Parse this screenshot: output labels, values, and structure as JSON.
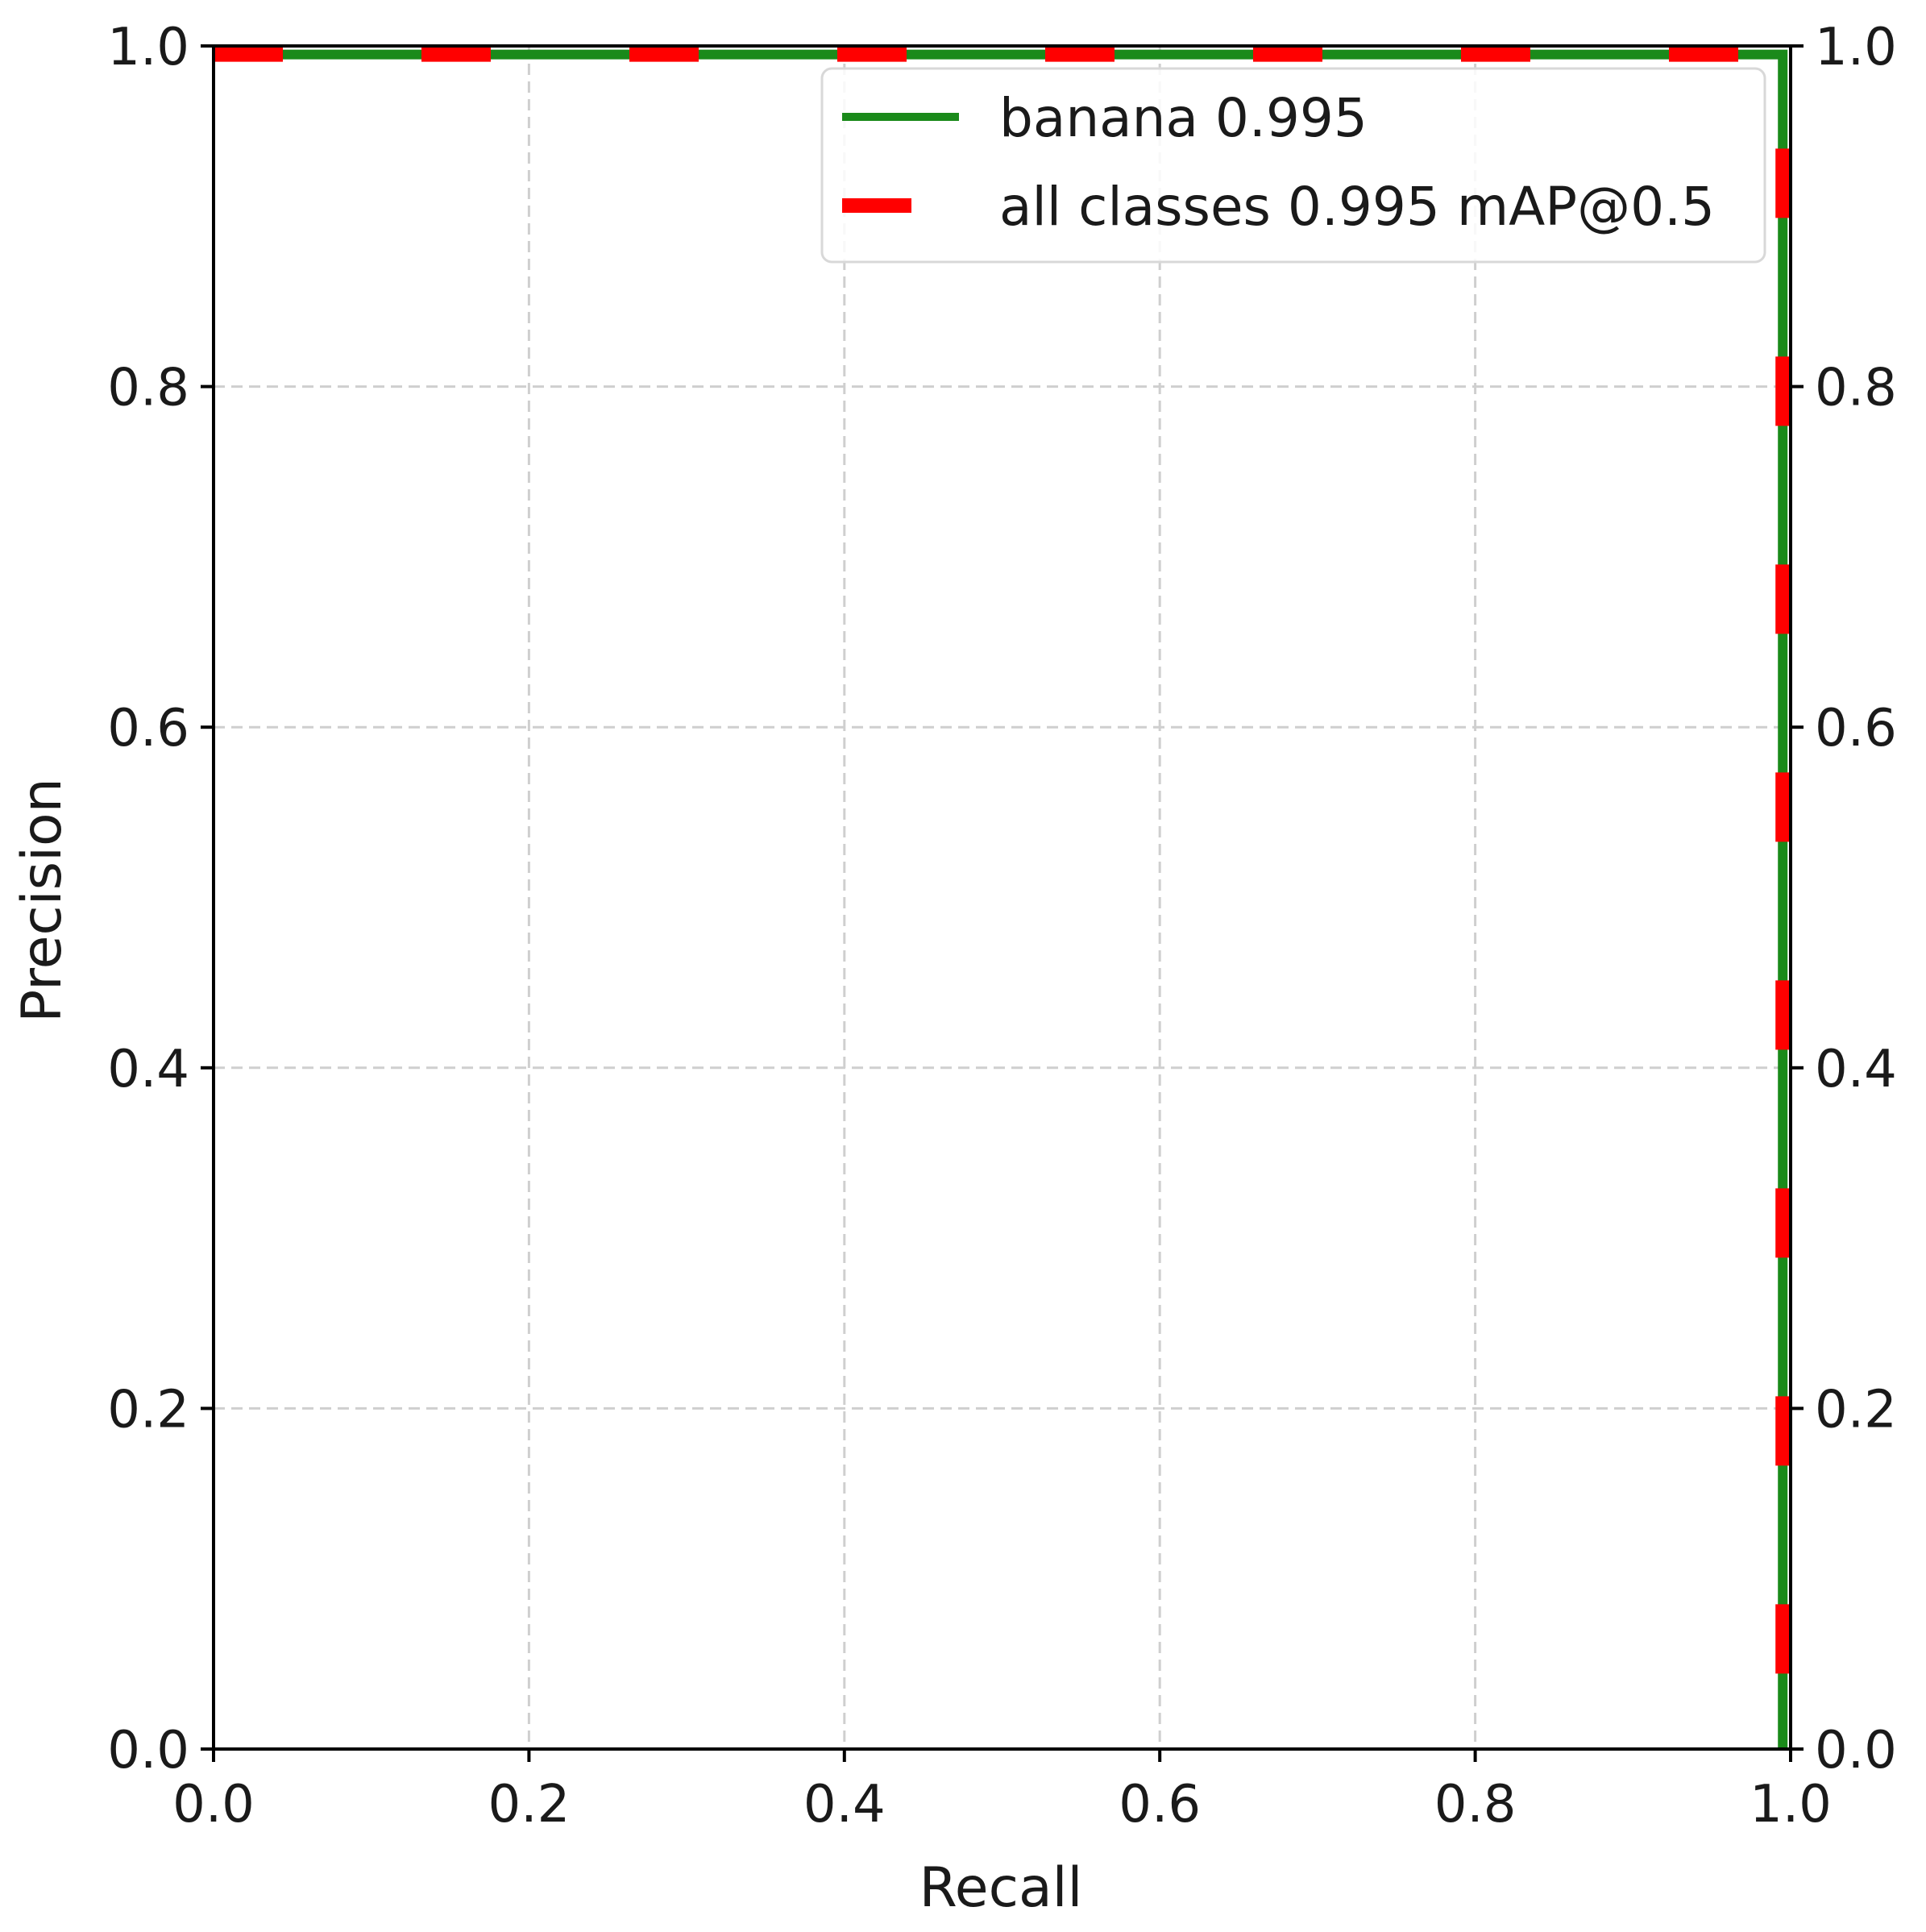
{
  "chart_data": {
    "type": "line",
    "title": "",
    "xlabel": "Recall",
    "ylabel": "Precision",
    "xlim": [
      0.0,
      1.0
    ],
    "ylim": [
      0.0,
      1.0
    ],
    "xticks": [
      "0.0",
      "0.2",
      "0.4",
      "0.6",
      "0.8",
      "1.0"
    ],
    "yticks": [
      "0.0",
      "0.2",
      "0.4",
      "0.6",
      "0.8",
      "1.0"
    ],
    "secondary_yaxis": true,
    "grid": true,
    "legend_position": "top-right",
    "series": [
      {
        "name": "banana 0.995",
        "color": "#1a8a1a",
        "style": "solid",
        "x": [
          0.0,
          0.995,
          0.995
        ],
        "y": [
          0.995,
          0.995,
          0.0
        ]
      },
      {
        "name": "all classes 0.995 mAP@0.5",
        "color": "#ff0000",
        "style": "dashed",
        "x": [
          0.0,
          0.995,
          0.995
        ],
        "y": [
          0.995,
          0.995,
          0.0
        ]
      }
    ]
  }
}
